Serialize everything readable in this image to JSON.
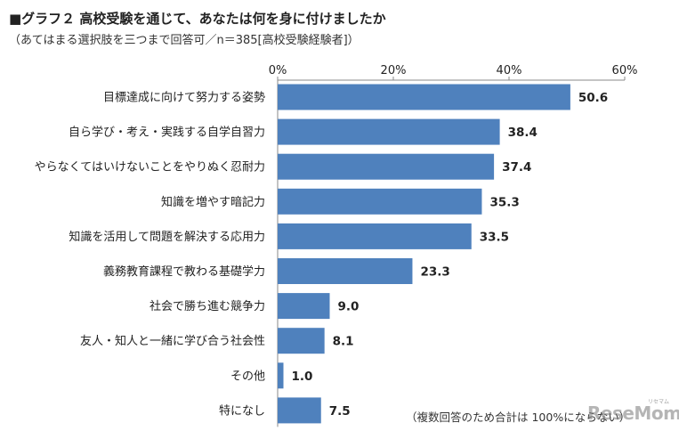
{
  "title": "■グラフ２ 高校受験を通じて、あなたは何を身に付けましたか",
  "subtitle": "（あてはまる選択肢を三つまで回答可／n＝385[高校受験経験者]）",
  "footnote": "（複数回答のため合計は 100%にならない）",
  "watermark": "ReseMom",
  "watermark_kana": "リセマム",
  "chart_data": {
    "type": "bar",
    "orientation": "horizontal",
    "categories": [
      "目標達成に向けて努力する姿勢",
      "自ら学び・考え・実践する自学自習力",
      "やらなくてはいけないことをやりぬく忍耐力",
      "知識を増やす暗記力",
      "知識を活用して問題を解決する応用力",
      "義務教育課程で教わる基礎学力",
      "社会で勝ち進む競争力",
      "友人・知人と一緒に学び合う社会性",
      "その他",
      "特になし"
    ],
    "values": [
      50.6,
      38.4,
      37.4,
      35.3,
      33.5,
      23.3,
      9.0,
      8.1,
      1.0,
      7.5
    ],
    "value_labels": [
      "50.6",
      "38.4",
      "37.4",
      "35.3",
      "33.5",
      "23.3",
      "9.0",
      "8.1",
      "1.0",
      "7.5"
    ],
    "xlim": [
      0,
      60
    ],
    "x_ticks": [
      "0%",
      "20%",
      "40%",
      "60%"
    ],
    "x_tick_values": [
      0,
      20,
      40,
      60
    ],
    "x_axis_position": "top",
    "bar_color": "#4f81bd",
    "grid": false
  }
}
